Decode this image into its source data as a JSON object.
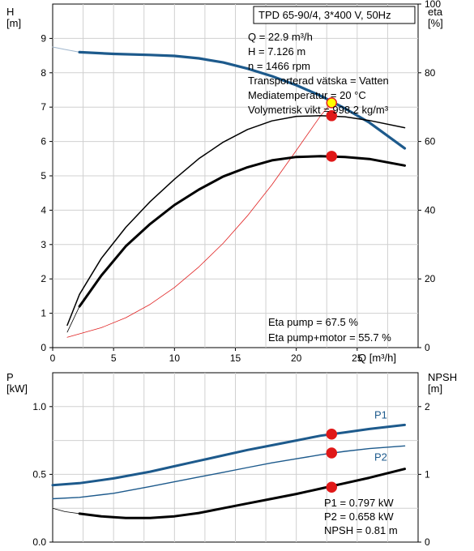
{
  "chart_data": [
    {
      "type": "line",
      "title": "TPD 65-90/4, 3*400 V, 50Hz",
      "ylabel_left": "H\n[m]",
      "ylabel_right": "eta\n[%]",
      "xlabel": "Q [m³/h]",
      "xlim": [
        0,
        30
      ],
      "ylim_left": [
        0,
        10
      ],
      "ylim_right": [
        0,
        100
      ],
      "x_ticks": [
        "0",
        "5",
        "10",
        "15",
        "20",
        "25"
      ],
      "y_ticks_left": [
        "0",
        "1",
        "2",
        "3",
        "4",
        "5",
        "6",
        "7",
        "8",
        "9"
      ],
      "y_ticks_right": [
        "0",
        "20",
        "40",
        "60",
        "80",
        "100"
      ],
      "grid": true,
      "info_lines": [
        "Q = 22.9 m³/h",
        "H = 7.126 m",
        "n = 1466 rpm",
        "Transporterad vätska = Vatten",
        "Mediatemperatur = 20 °C",
        "Volymetrisk vikt = 998.2 kg/m³"
      ],
      "eta_lines": [
        "Eta pump = 67.5 %",
        "Eta pump+motor = 55.7 %"
      ],
      "series": [
        {
          "id": "H-extension",
          "color": "#9fb6cc",
          "width": 1,
          "x": [
            0,
            1,
            2.2
          ],
          "y": [
            8.75,
            8.68,
            8.6
          ]
        },
        {
          "id": "H",
          "color": "#1d5a8c",
          "width": 3.2,
          "x": [
            2.2,
            5,
            8,
            10,
            12,
            14,
            16,
            18,
            20,
            22,
            24,
            26,
            28.9
          ],
          "y": [
            8.6,
            8.55,
            8.52,
            8.49,
            8.42,
            8.3,
            8.12,
            7.9,
            7.64,
            7.33,
            6.96,
            6.55,
            5.8
          ]
        },
        {
          "id": "H-system",
          "color": "#e02020",
          "width": 0.8,
          "x": [
            1.2,
            4,
            6,
            8,
            10,
            12,
            14,
            16,
            18,
            20,
            22,
            22.9
          ],
          "y": [
            0.3,
            0.58,
            0.87,
            1.26,
            1.75,
            2.35,
            3.04,
            3.84,
            4.74,
            5.74,
            6.75,
            7.126
          ]
        },
        {
          "id": "eta-pump",
          "color": "#000000",
          "width": 1.5,
          "x": [
            1.2,
            2.2,
            4,
            6,
            8,
            10,
            12,
            14,
            16,
            18,
            20,
            22,
            24,
            26,
            28.9
          ],
          "y": [
            6.5,
            15.5,
            26,
            35,
            42.5,
            49,
            55,
            59.8,
            63.5,
            66,
            67.3,
            67.5,
            67.2,
            66.1,
            64
          ]
        },
        {
          "id": "eta-pump-motor",
          "color": "#000000",
          "width": 3,
          "x": [
            2.2,
            4,
            6,
            8,
            10,
            12,
            14,
            16,
            18,
            20,
            22,
            24,
            26,
            28.9
          ],
          "y": [
            12,
            21,
            29.5,
            36,
            41.5,
            46,
            49.8,
            52.5,
            54.5,
            55.5,
            55.7,
            55.5,
            54.9,
            53
          ]
        },
        {
          "id": "eta-pump-motor-extension",
          "color": "#000000",
          "width": 0.8,
          "x": [
            1.2,
            2.2
          ],
          "y": [
            4.5,
            12
          ]
        }
      ],
      "points": [
        {
          "series": "H",
          "x": 22.9,
          "y": 7.126,
          "fill": "#ffff00",
          "stroke": "#e02020"
        },
        {
          "series": "eta-pump",
          "x": 22.9,
          "y": 67.5,
          "fill": "#e01818",
          "stroke": "#e01818"
        },
        {
          "series": "eta-pump-motor",
          "x": 22.9,
          "y": 55.7,
          "fill": "#e01818",
          "stroke": "#e01818"
        }
      ]
    },
    {
      "type": "line",
      "ylabel_left": "P\n[kW]",
      "ylabel_right": "NPSH\n[m]",
      "xlim": [
        0,
        30
      ],
      "ylim_left": [
        0,
        1.25
      ],
      "ylim_right": [
        0,
        2.5
      ],
      "y_ticks_left": [
        "0.0",
        "0.5",
        "1.0"
      ],
      "y_ticks_right": [
        "0",
        "1",
        "2"
      ],
      "grid": true,
      "info_lines": [
        "P1 = 0.797 kW",
        "P2 = 0.658 kW",
        "NPSH = 0.81 m"
      ],
      "series": [
        {
          "id": "P1",
          "name": "P1",
          "color": "#1d5a8c",
          "width": 3,
          "x": [
            0,
            2.2,
            5,
            8,
            10,
            12,
            14,
            16,
            18,
            20,
            22,
            24,
            26,
            28.9
          ],
          "y": [
            0.42,
            0.435,
            0.47,
            0.52,
            0.56,
            0.6,
            0.64,
            0.68,
            0.715,
            0.75,
            0.785,
            0.81,
            0.835,
            0.865
          ]
        },
        {
          "id": "P2",
          "name": "P2",
          "color": "#1d5a8c",
          "width": 1.4,
          "x": [
            0,
            2.2,
            5,
            8,
            10,
            12,
            14,
            16,
            18,
            20,
            22,
            24,
            26,
            28.9
          ],
          "y": [
            0.32,
            0.33,
            0.36,
            0.41,
            0.445,
            0.48,
            0.515,
            0.55,
            0.585,
            0.615,
            0.645,
            0.67,
            0.69,
            0.71
          ]
        },
        {
          "id": "NPSH-extension",
          "color": "#000000",
          "width": 0.8,
          "axis": "right",
          "x": [
            0,
            1,
            2.2
          ],
          "y": [
            0.5,
            0.45,
            0.42
          ]
        },
        {
          "id": "NPSH",
          "color": "#000000",
          "width": 3,
          "axis": "right",
          "x": [
            2.2,
            4,
            6,
            8,
            10,
            12,
            14,
            16,
            18,
            20,
            22,
            24,
            26,
            28.9
          ],
          "y": [
            0.42,
            0.38,
            0.355,
            0.355,
            0.38,
            0.43,
            0.5,
            0.57,
            0.64,
            0.71,
            0.79,
            0.87,
            0.95,
            1.08
          ]
        }
      ],
      "points": [
        {
          "series": "P1",
          "x": 22.9,
          "y": 0.797,
          "fill": "#e01818",
          "stroke": "#e01818"
        },
        {
          "series": "P2",
          "x": 22.9,
          "y": 0.658,
          "fill": "#e01818",
          "stroke": "#e01818"
        },
        {
          "series": "NPSH",
          "axis": "right",
          "x": 22.9,
          "y": 0.81,
          "fill": "#e01818",
          "stroke": "#e01818"
        }
      ]
    }
  ]
}
